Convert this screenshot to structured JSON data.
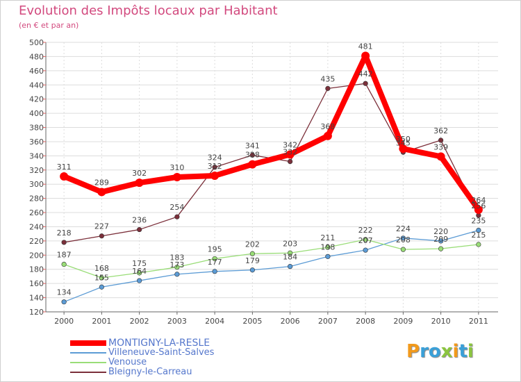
{
  "title": "Evolution des Impôts locaux par Habitant",
  "subtitle": "(en € et par an)",
  "logo": {
    "text": "Proxiti",
    "letters": [
      "P",
      "r",
      "o",
      "x",
      "i",
      "t",
      "i"
    ],
    "colors": [
      "#f29a1c",
      "#3aa0d8",
      "#3aa0d8",
      "#8bc53f",
      "#f29a1c",
      "#3aa0d8",
      "#8bc53f"
    ]
  },
  "chart_data": {
    "type": "line",
    "title": "Evolution des Impôts locaux par Habitant",
    "subtitle": "(en € et par an)",
    "xlabel": "",
    "ylabel": "",
    "categories": [
      "2000",
      "2001",
      "2002",
      "2003",
      "2004",
      "2005",
      "2006",
      "2007",
      "2008",
      "2009",
      "2010",
      "2011"
    ],
    "ylim": [
      120,
      500
    ],
    "yticks": [
      120,
      140,
      160,
      180,
      200,
      220,
      240,
      260,
      280,
      300,
      320,
      340,
      360,
      380,
      400,
      420,
      440,
      460,
      480,
      500
    ],
    "grid": true,
    "legend_position": "bottom-left",
    "series": [
      {
        "name": "MONTIGNY-LA-RESLE",
        "color": "#ff0000",
        "emphasis": true,
        "values": [
          311,
          289,
          302,
          310,
          312,
          328,
          342,
          368,
          481,
          350,
          339,
          264
        ],
        "labels": [
          "311",
          "289",
          "302",
          "310",
          "312",
          "328",
          "342",
          "368",
          "481",
          "350",
          "339",
          "264"
        ]
      },
      {
        "name": "Villeneuve-Saint-Salves",
        "color": "#5b9bd5",
        "emphasis": false,
        "values": [
          134,
          155,
          164,
          173,
          177,
          179,
          184,
          198,
          207,
          224,
          220,
          235
        ],
        "labels": [
          "134",
          "155",
          "164",
          "173",
          "177",
          "179",
          "184",
          "198",
          "207",
          "224",
          "220",
          "235"
        ]
      },
      {
        "name": "Venouse",
        "color": "#99dd77",
        "emphasis": false,
        "values": [
          187,
          168,
          175,
          183,
          195,
          202,
          203,
          211,
          222,
          208,
          209,
          215
        ],
        "labels": [
          "187",
          "168",
          "175",
          "183",
          "195",
          "202",
          "203",
          "211",
          "222",
          "208",
          "209",
          "215"
        ]
      },
      {
        "name": "Bleigny-le-Carreau",
        "color": "#7b2f3a",
        "emphasis": false,
        "values": [
          218,
          227,
          236,
          254,
          324,
          341,
          332,
          435,
          442,
          345,
          362,
          256
        ],
        "labels": [
          "218",
          "227",
          "236",
          "254",
          "324",
          "341",
          "332",
          "435",
          "442",
          "345",
          "362",
          "256"
        ]
      }
    ]
  }
}
